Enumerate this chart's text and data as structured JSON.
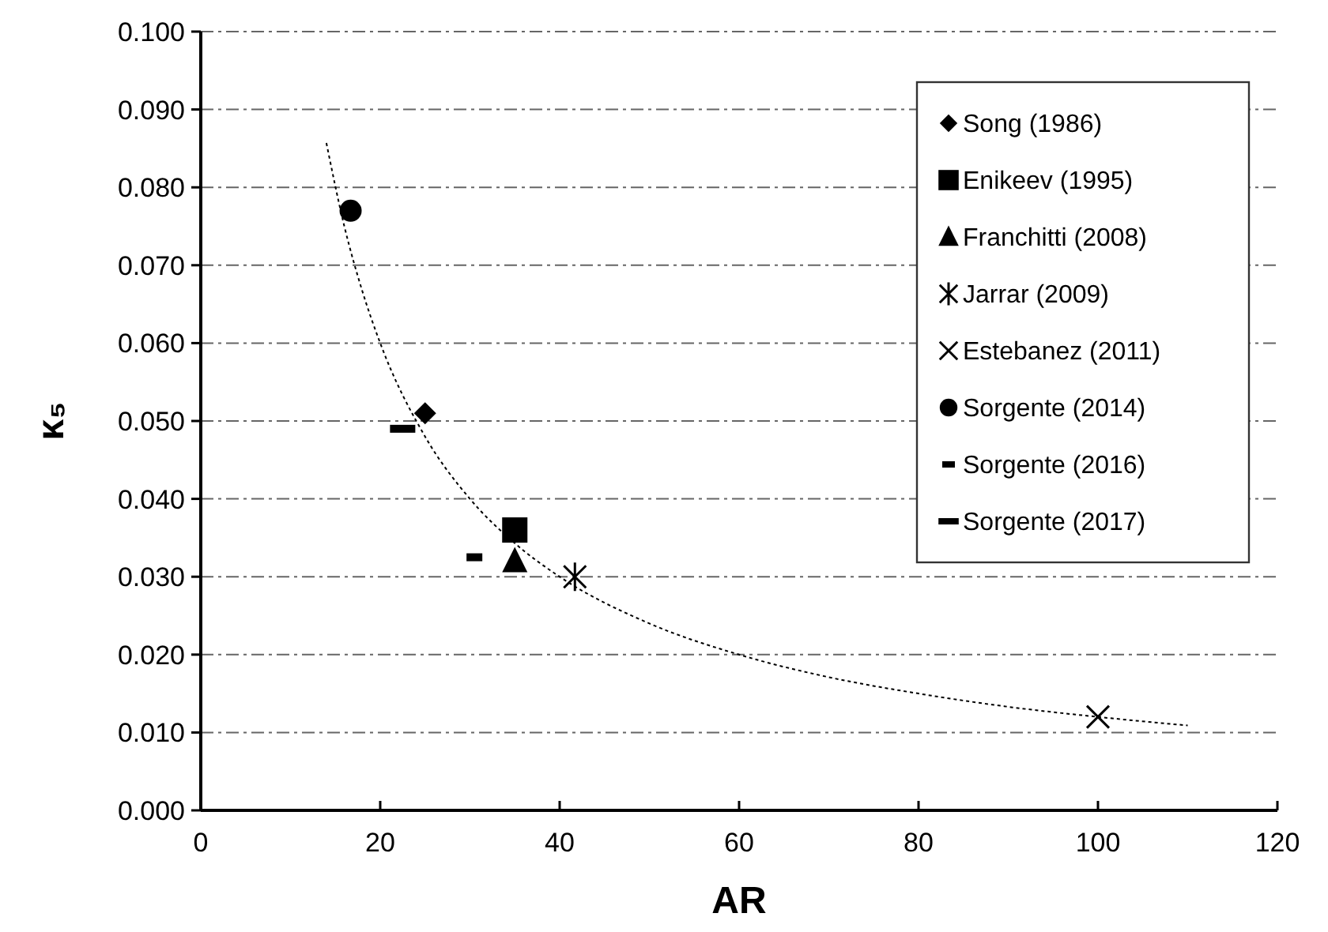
{
  "chart_data": {
    "type": "scatter",
    "xlabel": "AR",
    "ylabel": "κ₅",
    "xlim": [
      0,
      120
    ],
    "xticks": [
      0,
      20,
      40,
      60,
      80,
      100,
      120
    ],
    "ylim": [
      0,
      0.1
    ],
    "yticks": [
      {
        "value": 0,
        "label": "0.000"
      },
      {
        "value": 0.01,
        "label": "0.010"
      },
      {
        "value": 0.02,
        "label": "0.020"
      },
      {
        "value": 0.03,
        "label": "0.030"
      },
      {
        "value": 0.04,
        "label": "0.040"
      },
      {
        "value": 0.05,
        "label": "0.050"
      },
      {
        "value": 0.06,
        "label": "0.060"
      },
      {
        "value": 0.07,
        "label": "0.070"
      },
      {
        "value": 0.08,
        "label": "0.080"
      },
      {
        "value": 0.09,
        "label": "0.090"
      },
      {
        "value": 0.1,
        "label": "0.100"
      }
    ],
    "grid": "y",
    "legend": "top right",
    "series": [
      {
        "name": "Song (1986)",
        "color": "#000000",
        "marker": "diamond",
        "x": [
          25
        ],
        "values": [
          0.051
        ]
      },
      {
        "name": "Enikeev (1995)",
        "color": "#000000",
        "marker": "square",
        "x": [
          35
        ],
        "values": [
          0.036
        ]
      },
      {
        "name": "Franchitti (2008)",
        "color": "#000000",
        "marker": "triangle",
        "x": [
          35
        ],
        "values": [
          0.032
        ]
      },
      {
        "name": "Jarrar (2009)",
        "color": "#000000",
        "marker": "cross",
        "x": [
          41.7
        ],
        "values": [
          0.03
        ]
      },
      {
        "name": "Estebanez (2011)",
        "color": "#000000",
        "marker": "cross",
        "x": [
          100
        ],
        "values": [
          0.012
        ]
      },
      {
        "name": "Sorgente (2014)",
        "color": "#000000",
        "marker": "circle",
        "x": [
          16.7
        ],
        "values": [
          0.077
        ]
      },
      {
        "name": "Sorgente (2016)",
        "color": "#000000",
        "marker": "square",
        "x": [
          30.5
        ],
        "values": [
          0.0325
        ]
      },
      {
        "name": "Sorgente (2017)",
        "color": "#000000",
        "marker": "square",
        "x": [
          22.5
        ],
        "values": [
          0.049
        ]
      },
      {
        "type": "line",
        "color": "#000000",
        "line_style": "dotted",
        "marker": "none",
        "x": [
          14,
          16,
          18,
          20,
          25,
          30,
          35,
          40,
          50,
          60,
          70,
          80,
          90,
          100,
          110
        ],
        "values": [
          0.0857,
          0.075,
          0.0667,
          0.06,
          0.048,
          0.04,
          0.0343,
          0.03,
          0.024,
          0.02,
          0.0171,
          0.015,
          0.0133,
          0.012,
          0.0109
        ]
      }
    ]
  }
}
